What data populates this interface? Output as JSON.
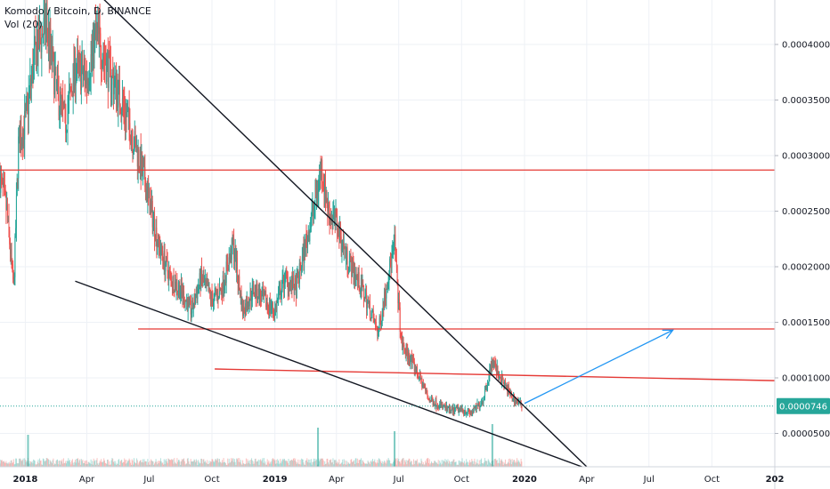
{
  "legend": {
    "title": "Komodo / Bitcoin, D, BINANCE",
    "volume": "Vol (20)"
  },
  "chart_data": {
    "type": "candlestick",
    "symbol": "Komodo / Bitcoin",
    "interval": "D",
    "exchange": "BINANCE",
    "ylim": [
      2e-05,
      0.00044
    ],
    "y_ticks": [
      "0.0000500",
      "0.0001000",
      "0.0001500",
      "0.0002000",
      "0.0002500",
      "0.0003000",
      "0.0003500",
      "0.0004000"
    ],
    "y_tick_values": [
      5e-05,
      0.0001,
      0.00015,
      0.0002,
      0.00025,
      0.0003,
      0.00035,
      0.0004
    ],
    "x_ticks": [
      {
        "label": "2018",
        "date": "2018-01-01",
        "bold": true
      },
      {
        "label": "Apr",
        "date": "2018-04-01",
        "bold": false
      },
      {
        "label": "Jul",
        "date": "2018-07-01",
        "bold": false
      },
      {
        "label": "Oct",
        "date": "2018-10-01",
        "bold": false
      },
      {
        "label": "2019",
        "date": "2019-01-01",
        "bold": true
      },
      {
        "label": "Apr",
        "date": "2019-04-01",
        "bold": false
      },
      {
        "label": "Jul",
        "date": "2019-07-01",
        "bold": false
      },
      {
        "label": "Oct",
        "date": "2019-10-01",
        "bold": false
      },
      {
        "label": "2020",
        "date": "2020-01-01",
        "bold": true
      },
      {
        "label": "Apr",
        "date": "2020-04-01",
        "bold": false
      },
      {
        "label": "Jul",
        "date": "2020-07-01",
        "bold": false
      },
      {
        "label": "Oct",
        "date": "2020-10-01",
        "bold": false
      },
      {
        "label": "202",
        "date": "2021-01-01",
        "bold": true
      }
    ],
    "xlim": [
      "2017-11-25",
      "2021-01-01"
    ],
    "last_price": 7.46e-05,
    "last_price_label": "0.0000746",
    "price_path": [
      [
        "2017-11-25",
        0.00028
      ],
      [
        "2017-12-05",
        0.00025
      ],
      [
        "2017-12-15",
        0.00018
      ],
      [
        "2017-12-22",
        0.00031
      ],
      [
        "2018-01-01",
        0.00033
      ],
      [
        "2018-01-15",
        0.00039
      ],
      [
        "2018-02-01",
        0.00042
      ],
      [
        "2018-02-15",
        0.00036
      ],
      [
        "2018-03-01",
        0.00033
      ],
      [
        "2018-03-15",
        0.00038
      ],
      [
        "2018-04-01",
        0.00037
      ],
      [
        "2018-04-15",
        0.00041
      ],
      [
        "2018-05-01",
        0.00038
      ],
      [
        "2018-05-15",
        0.00036
      ],
      [
        "2018-06-01",
        0.00033
      ],
      [
        "2018-06-15",
        0.0003
      ],
      [
        "2018-07-01",
        0.00026
      ],
      [
        "2018-07-15",
        0.00022
      ],
      [
        "2018-08-01",
        0.00019
      ],
      [
        "2018-08-15",
        0.00018
      ],
      [
        "2018-09-01",
        0.00016
      ],
      [
        "2018-09-15",
        0.00019
      ],
      [
        "2018-10-01",
        0.00017
      ],
      [
        "2018-10-15",
        0.00018
      ],
      [
        "2018-11-01",
        0.00022
      ],
      [
        "2018-11-15",
        0.00016
      ],
      [
        "2018-12-01",
        0.00018
      ],
      [
        "2018-12-15",
        0.00017
      ],
      [
        "2019-01-01",
        0.00016
      ],
      [
        "2019-01-15",
        0.00019
      ],
      [
        "2019-02-01",
        0.00018
      ],
      [
        "2019-02-15",
        0.00022
      ],
      [
        "2019-03-01",
        0.00026
      ],
      [
        "2019-03-10",
        0.00029
      ],
      [
        "2019-03-20",
        0.00025
      ],
      [
        "2019-04-01",
        0.00024
      ],
      [
        "2019-04-15",
        0.00021
      ],
      [
        "2019-05-01",
        0.00019
      ],
      [
        "2019-05-15",
        0.00017
      ],
      [
        "2019-06-01",
        0.00014
      ],
      [
        "2019-06-15",
        0.00019
      ],
      [
        "2019-06-25",
        0.00022
      ],
      [
        "2019-07-05",
        0.00013
      ],
      [
        "2019-07-15",
        0.00012
      ],
      [
        "2019-08-01",
        0.0001
      ],
      [
        "2019-08-15",
        8e-05
      ],
      [
        "2019-09-01",
        7.5e-05
      ],
      [
        "2019-09-15",
        7e-05
      ],
      [
        "2019-10-01",
        7.2e-05
      ],
      [
        "2019-10-15",
        6.8e-05
      ],
      [
        "2019-11-01",
        8e-05
      ],
      [
        "2019-11-15",
        0.000115
      ],
      [
        "2019-12-01",
        9.5e-05
      ],
      [
        "2019-12-15",
        8.2e-05
      ],
      [
        "2019-12-28",
        7.46e-05
      ]
    ],
    "volume_spikes": [
      [
        "2018-01-05",
        0.45
      ],
      [
        "2019-03-05",
        0.55
      ],
      [
        "2019-06-25",
        0.5
      ],
      [
        "2019-11-15",
        0.6
      ]
    ],
    "drawings": {
      "horizontal_lines": [
        {
          "start": "2017-11-25",
          "end": "2021-01-01",
          "price": 0.000287
        },
        {
          "start": "2018-06-15",
          "end": "2021-01-01",
          "price": 0.000144
        }
      ],
      "sloped_lines": [
        {
          "start": [
            "2018-10-05",
            0.000108
          ],
          "end": [
            "2021-01-01",
            9.75e-05
          ],
          "color": "red"
        },
        {
          "start": [
            "2018-04-15",
            0.000447
          ],
          "end": [
            "2020-04-01",
            2e-05
          ],
          "color": "black"
        },
        {
          "start": [
            "2018-03-15",
            0.000187
          ],
          "end": [
            "2020-03-25",
            2e-05
          ],
          "color": "black"
        }
      ],
      "arrow": {
        "start": [
          "2020-01-01",
          7.7e-05
        ],
        "end": [
          "2020-08-05",
          0.000143
        ]
      }
    },
    "colors": {
      "up": "#26a69a",
      "down": "#ef5350",
      "trend": "#131722",
      "resistance": "#e53935",
      "arrow": "#2196f3",
      "last_price_bg": "#26a69a",
      "grid": "#eef1f6"
    }
  }
}
